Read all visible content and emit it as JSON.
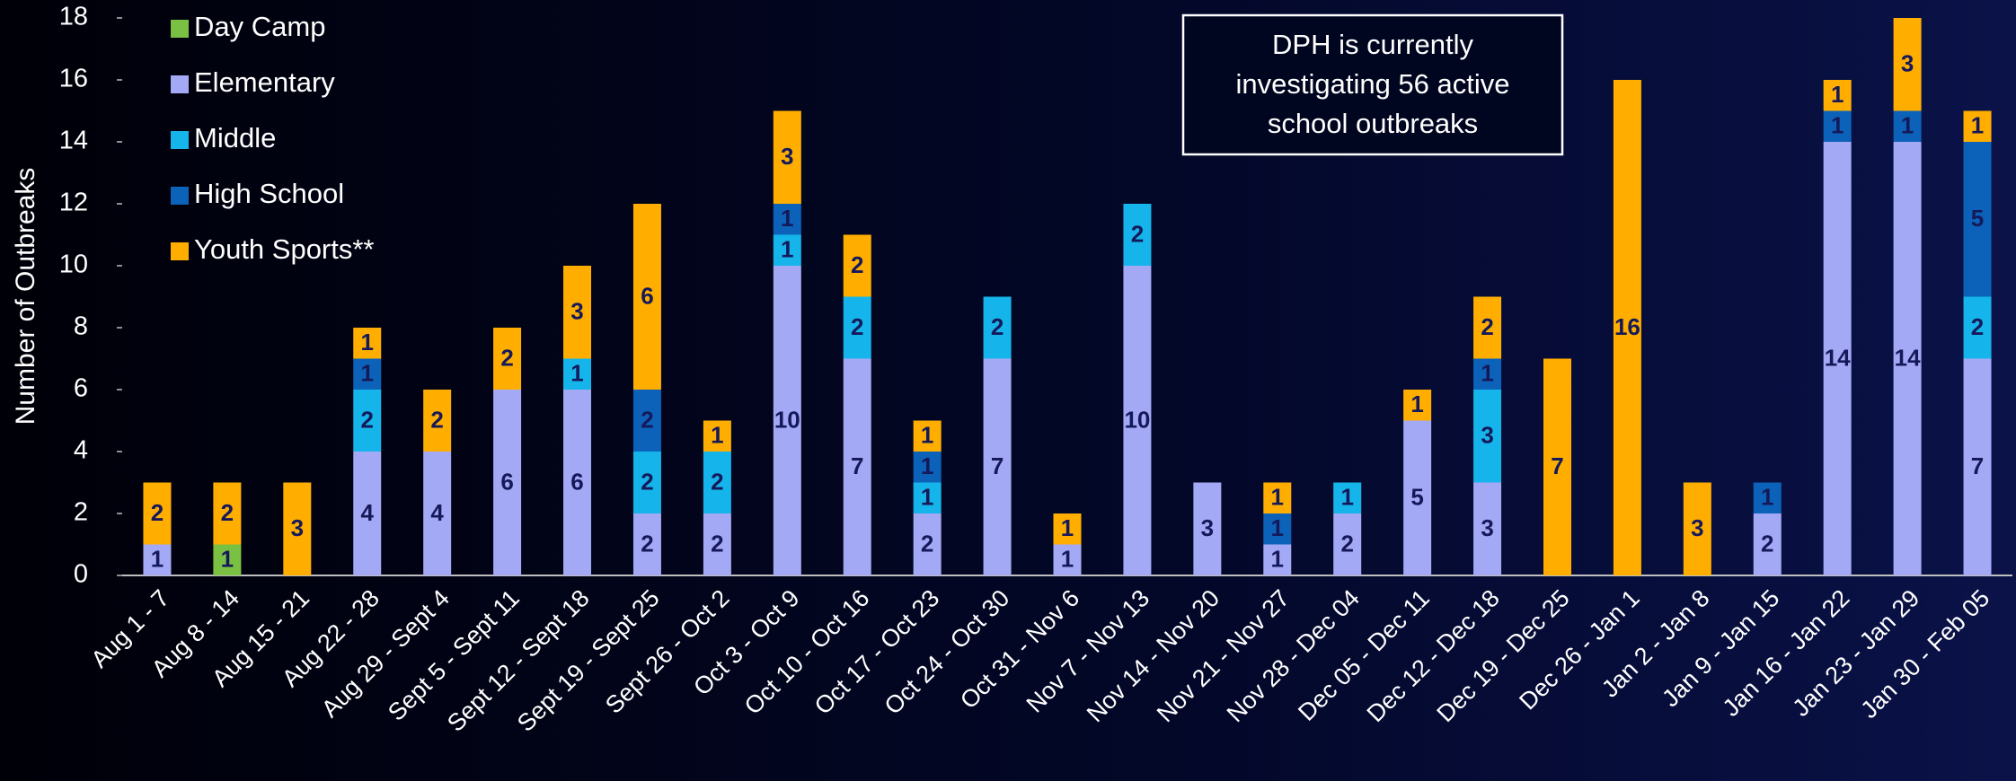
{
  "chart_data": {
    "type": "stacked_bar",
    "y_axis_label": "Number of Outbreaks",
    "annotation": [
      "DPH is currently",
      "investigating 56 active",
      "school outbreaks"
    ],
    "categories": [
      "Aug 1 - 7",
      "Aug 8 - 14",
      "Aug 15 - 21",
      "Aug 22 - 28",
      "Aug 29 - Sept 4",
      "Sept 5 - Sept 11",
      "Sept 12 - Sept 18",
      "Sept 19 - Sept 25",
      "Sept 26 - Oct 2",
      "Oct 3 - Oct 9",
      "Oct 10 - Oct 16",
      "Oct 17 - Oct 23",
      "Oct 24 - Oct 30",
      "Oct 31 - Nov 6",
      "Nov 7 - Nov 13",
      "Nov 14 - Nov 20",
      "Nov 21 - Nov 27",
      "Nov 28 - Dec 04",
      "Dec 05 - Dec 11",
      "Dec 12 - Dec 18",
      "Dec 19 - Dec 25",
      "Dec 26 - Jan 1",
      "Jan 2 - Jan 8",
      "Jan 9 - Jan 15",
      "Jan 16 - Jan 22",
      "Jan 23 - Jan 29",
      "Jan 30 - Feb 05"
    ],
    "series": [
      {
        "name": "Day Camp",
        "color": "#7ac143",
        "values": [
          null,
          1,
          null,
          null,
          null,
          null,
          null,
          null,
          null,
          null,
          null,
          null,
          null,
          null,
          null,
          null,
          null,
          null,
          null,
          null,
          null,
          null,
          null,
          null,
          null,
          null,
          null
        ]
      },
      {
        "name": "Elementary",
        "color": "#a4a9f5",
        "values": [
          1,
          null,
          null,
          4,
          4,
          6,
          6,
          2,
          2,
          10,
          7,
          2,
          7,
          1,
          10,
          3,
          1,
          2,
          5,
          3,
          null,
          null,
          null,
          2,
          14,
          14,
          7
        ]
      },
      {
        "name": "Middle",
        "color": "#15b4ea",
        "values": [
          null,
          null,
          null,
          2,
          null,
          null,
          1,
          2,
          2,
          1,
          2,
          1,
          2,
          null,
          2,
          null,
          null,
          1,
          null,
          3,
          null,
          null,
          null,
          null,
          null,
          null,
          2
        ]
      },
      {
        "name": "High School",
        "color": "#0b62b8",
        "values": [
          null,
          null,
          null,
          1,
          null,
          null,
          null,
          2,
          null,
          1,
          null,
          1,
          null,
          null,
          null,
          null,
          1,
          null,
          null,
          1,
          null,
          null,
          null,
          1,
          1,
          1,
          5
        ]
      },
      {
        "name": "Youth Sports**",
        "color": "#ffae00",
        "values": [
          2,
          2,
          3,
          1,
          2,
          2,
          3,
          6,
          1,
          3,
          2,
          1,
          null,
          1,
          null,
          null,
          1,
          null,
          1,
          2,
          7,
          16,
          3,
          null,
          1,
          3,
          1
        ]
      }
    ],
    "ylim": [
      0,
      18
    ],
    "yticks": [
      0,
      2,
      4,
      6,
      8,
      10,
      12,
      14,
      16,
      18
    ]
  }
}
